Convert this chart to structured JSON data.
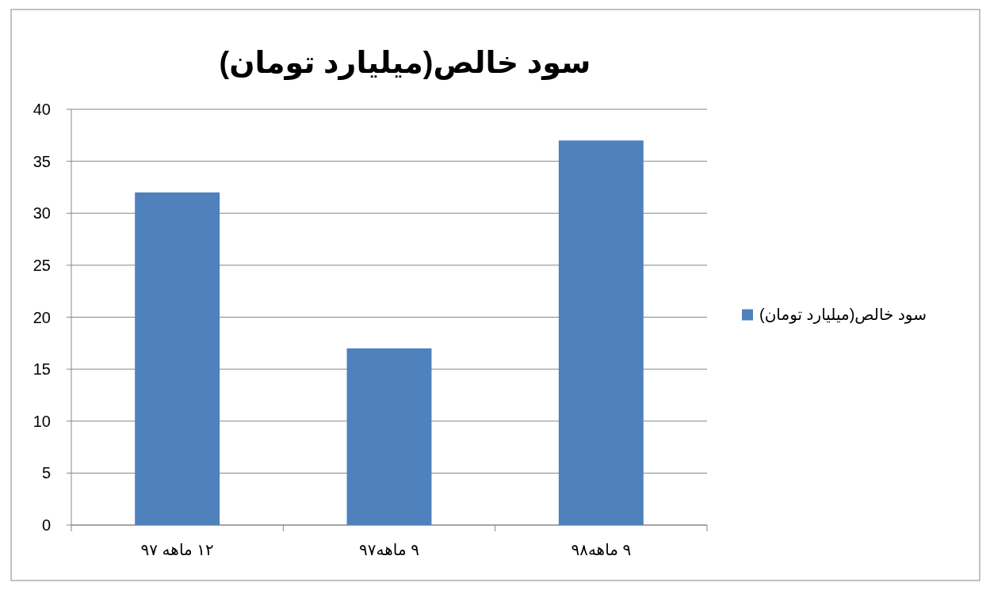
{
  "chart_data": {
    "type": "bar",
    "title": "سود خالص(میلیارد تومان)",
    "categories": [
      "۱۲ ماهه ۹۷",
      "۹ ماهه۹۷",
      "۹ ماهه۹۸"
    ],
    "series": [
      {
        "name": "سود خالص(میلیارد تومان)",
        "color": "#4f81bd",
        "values": [
          32,
          17,
          37
        ]
      }
    ],
    "ylim": [
      0,
      40
    ],
    "yticks": [
      0,
      5,
      10,
      15,
      20,
      25,
      30,
      35,
      40
    ],
    "grid": "y",
    "legend": "right"
  }
}
